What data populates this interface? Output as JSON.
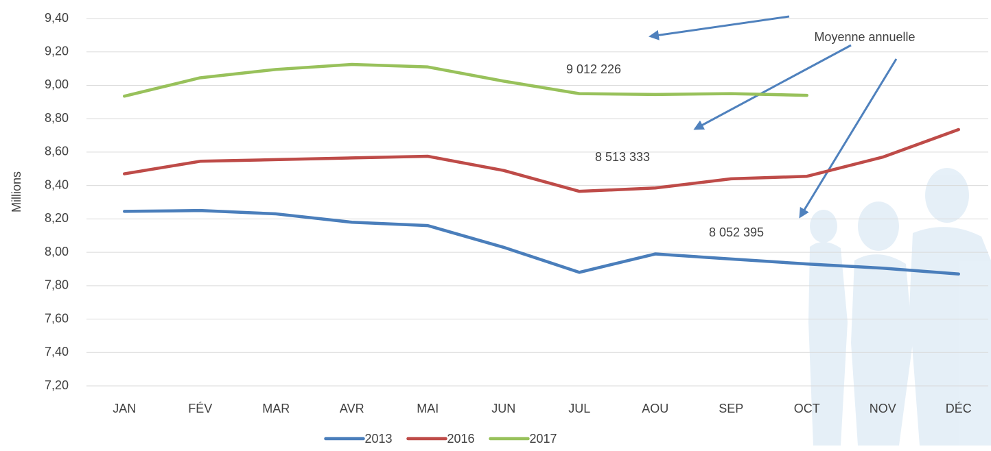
{
  "chart_data": {
    "type": "line",
    "y_label": "Millions",
    "categories": [
      "JAN",
      "FÉV",
      "MAR",
      "AVR",
      "MAI",
      "JUN",
      "JUL",
      "AOU",
      "SEP",
      "OCT",
      "NOV",
      "DÉC"
    ],
    "series": [
      {
        "name": "2013",
        "color": "#4a7ebb",
        "values": [
          8.245,
          8.25,
          8.23,
          8.18,
          8.16,
          8.03,
          7.88,
          7.99,
          7.96,
          7.93,
          7.905,
          7.87
        ]
      },
      {
        "name": "2016",
        "color": "#be4b48",
        "values": [
          8.47,
          8.545,
          8.555,
          8.565,
          8.575,
          8.49,
          8.365,
          8.385,
          8.44,
          8.455,
          8.57,
          8.735
        ]
      },
      {
        "name": "2017",
        "color": "#98c15b",
        "values": [
          8.935,
          9.045,
          9.095,
          9.125,
          9.11,
          9.025,
          8.95,
          8.945,
          8.95,
          8.94,
          null,
          null
        ]
      }
    ],
    "ylim": [
      7.2,
      9.4
    ],
    "yticks": [
      {
        "value": 7.2,
        "label": "7,20"
      },
      {
        "value": 7.4,
        "label": "7,40"
      },
      {
        "value": 7.6,
        "label": "7,60"
      },
      {
        "value": 7.8,
        "label": "7,80"
      },
      {
        "value": 8.0,
        "label": "8,00"
      },
      {
        "value": 8.2,
        "label": "8,20"
      },
      {
        "value": 8.4,
        "label": "8,40"
      },
      {
        "value": 8.6,
        "label": "8,60"
      },
      {
        "value": 8.8,
        "label": "8,80"
      },
      {
        "value": 9.0,
        "label": "9,00"
      },
      {
        "value": 9.2,
        "label": "9,20"
      },
      {
        "value": 9.4,
        "label": "9,40"
      }
    ],
    "grid": true,
    "legend": "bottom",
    "annotations": [
      "Moyenne annuelle",
      "9 012 226",
      "8 513 333",
      "8 052 395"
    ]
  }
}
